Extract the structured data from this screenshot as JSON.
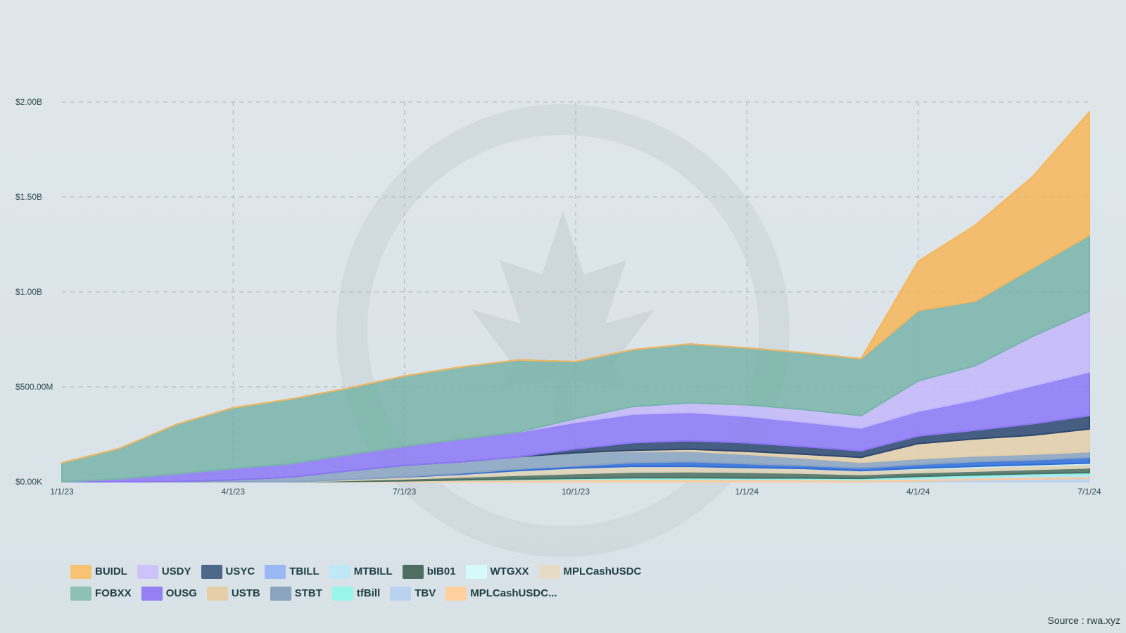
{
  "chart_data": {
    "type": "area",
    "stacked": true,
    "y_ticks": [
      "$0.00K",
      "$500.00M",
      "$1.00B",
      "$1.50B",
      "$2.00B"
    ],
    "x_ticks": [
      "1/1/23",
      "4/1/23",
      "7/1/23",
      "10/1/23",
      "1/1/24",
      "4/1/24",
      "7/1/24"
    ],
    "ylim": [
      0,
      2000
    ],
    "x": [
      "1/1/23",
      "2/1/23",
      "3/1/23",
      "4/1/23",
      "5/1/23",
      "6/1/23",
      "7/1/23",
      "8/1/23",
      "9/1/23",
      "10/1/23",
      "11/1/23",
      "12/1/23",
      "1/1/24",
      "2/1/24",
      "3/1/24",
      "4/1/24",
      "5/1/24",
      "6/1/24",
      "7/1/24"
    ],
    "series": [
      {
        "name": "TBV",
        "color": "#b9d3ee",
        "values": [
          0,
          0,
          0,
          0,
          0,
          0,
          0,
          0,
          0,
          0,
          0,
          0,
          0,
          0,
          0,
          5,
          10,
          15,
          18
        ]
      },
      {
        "name": "MPLCashUSDC...",
        "color": "#ffc99a",
        "values": [
          0,
          0,
          0,
          0,
          0,
          2,
          5,
          8,
          10,
          12,
          13,
          13,
          12,
          12,
          10,
          10,
          10,
          10,
          10
        ]
      },
      {
        "name": "MTBILL",
        "color": "#b8e6f6",
        "values": [
          0,
          0,
          0,
          0,
          0,
          0,
          0,
          0,
          0,
          0,
          0,
          0,
          0,
          0,
          0,
          5,
          8,
          10,
          12
        ]
      },
      {
        "name": "tfBill",
        "color": "#8ff0e4",
        "values": [
          0,
          0,
          0,
          0,
          0,
          0,
          0,
          2,
          4,
          6,
          8,
          8,
          8,
          8,
          8,
          8,
          8,
          8,
          8
        ]
      },
      {
        "name": "bIB01",
        "color": "#4a6e60",
        "values": [
          0,
          0,
          0,
          0,
          0,
          5,
          10,
          15,
          20,
          25,
          30,
          32,
          30,
          25,
          20,
          20,
          20,
          22,
          25
        ]
      },
      {
        "name": "MPLCashUSDC",
        "color": "#dfd3b8",
        "values": [
          0,
          0,
          0,
          0,
          0,
          5,
          10,
          15,
          25,
          30,
          30,
          28,
          25,
          25,
          20,
          20,
          20,
          20,
          20
        ]
      },
      {
        "name": "WTGXX",
        "color": "#ccf7f4",
        "values": [
          0,
          0,
          0,
          0,
          0,
          0,
          0,
          0,
          0,
          0,
          0,
          0,
          0,
          0,
          0,
          3,
          5,
          5,
          5
        ]
      },
      {
        "name": "TBILL",
        "color": "#2e6cd9",
        "values": [
          0,
          0,
          0,
          0,
          0,
          0,
          2,
          5,
          8,
          10,
          20,
          25,
          20,
          15,
          15,
          20,
          25,
          25,
          30
        ]
      },
      {
        "name": "STBT",
        "color": "#8aa3c2",
        "values": [
          0,
          0,
          2,
          10,
          25,
          45,
          60,
          60,
          65,
          70,
          60,
          55,
          50,
          40,
          30,
          30,
          30,
          30,
          30
        ]
      },
      {
        "name": "USTB",
        "color": "#e4cfa9",
        "values": [
          0,
          0,
          0,
          0,
          0,
          0,
          0,
          0,
          0,
          0,
          5,
          10,
          15,
          20,
          25,
          80,
          90,
          100,
          120
        ]
      },
      {
        "name": "USYC",
        "color": "#2c4770",
        "values": [
          0,
          0,
          0,
          0,
          0,
          0,
          0,
          0,
          0,
          20,
          40,
          45,
          45,
          40,
          35,
          40,
          45,
          60,
          70
        ]
      },
      {
        "name": "OUSG",
        "color": "#8c78f7",
        "values": [
          0,
          15,
          40,
          60,
          70,
          85,
          100,
          120,
          130,
          140,
          150,
          150,
          140,
          130,
          120,
          130,
          160,
          200,
          230
        ]
      },
      {
        "name": "USDY",
        "color": "#c4b8fb",
        "values": [
          0,
          0,
          0,
          0,
          0,
          0,
          0,
          0,
          0,
          20,
          40,
          50,
          60,
          65,
          65,
          160,
          180,
          260,
          320
        ]
      },
      {
        "name": "FOBXX",
        "color": "#78b4a9",
        "values": [
          100,
          160,
          260,
          320,
          340,
          350,
          370,
          380,
          380,
          300,
          300,
          310,
          300,
          300,
          300,
          370,
          340,
          360,
          400
        ]
      },
      {
        "name": "BUIDL",
        "color": "#f7b65a",
        "values": [
          0,
          0,
          0,
          0,
          0,
          0,
          0,
          0,
          0,
          0,
          0,
          0,
          0,
          0,
          0,
          260,
          400,
          480,
          650
        ]
      }
    ]
  },
  "legend": {
    "row1": [
      {
        "label": "BUIDL",
        "color": "#f7c373"
      },
      {
        "label": "USDY",
        "color": "#cdc3fa"
      },
      {
        "label": "USYC",
        "color": "#4e6889"
      },
      {
        "label": "TBILL",
        "color": "#9ab8f4"
      },
      {
        "label": "MTBILL",
        "color": "#bfe8f7"
      },
      {
        "label": "bIB01",
        "color": "#4f6e62"
      },
      {
        "label": "WTGXX",
        "color": "#d5fafa"
      },
      {
        "label": "MPLCashUSDC",
        "color": "#e6dcc6"
      }
    ],
    "row2": [
      {
        "label": "FOBXX",
        "color": "#8fc0b7"
      },
      {
        "label": "OUSG",
        "color": "#947ff5"
      },
      {
        "label": "USTB",
        "color": "#e5cfa8"
      },
      {
        "label": "STBT",
        "color": "#8aa3bf"
      },
      {
        "label": "tfBill",
        "color": "#99f5e8"
      },
      {
        "label": "TBV",
        "color": "#b8d2ef"
      },
      {
        "label": "MPLCashUSDC...",
        "color": "#ffcf9e"
      }
    ]
  },
  "source": "Source : rwa.xyz"
}
